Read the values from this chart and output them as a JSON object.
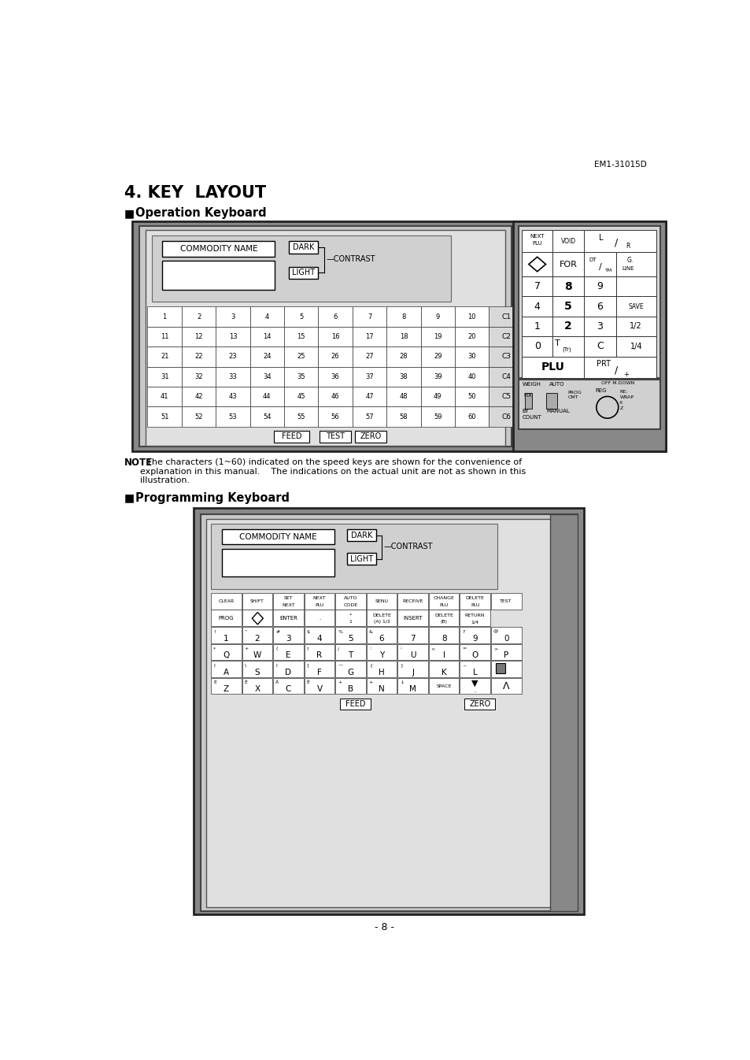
{
  "page_header": "EM1-31015D",
  "title": "4. KEY  LAYOUT",
  "section1": "Operation Keyboard",
  "section2": "Programming Keyboard",
  "footer": "- 8 -",
  "bg_color": "#ffffff"
}
